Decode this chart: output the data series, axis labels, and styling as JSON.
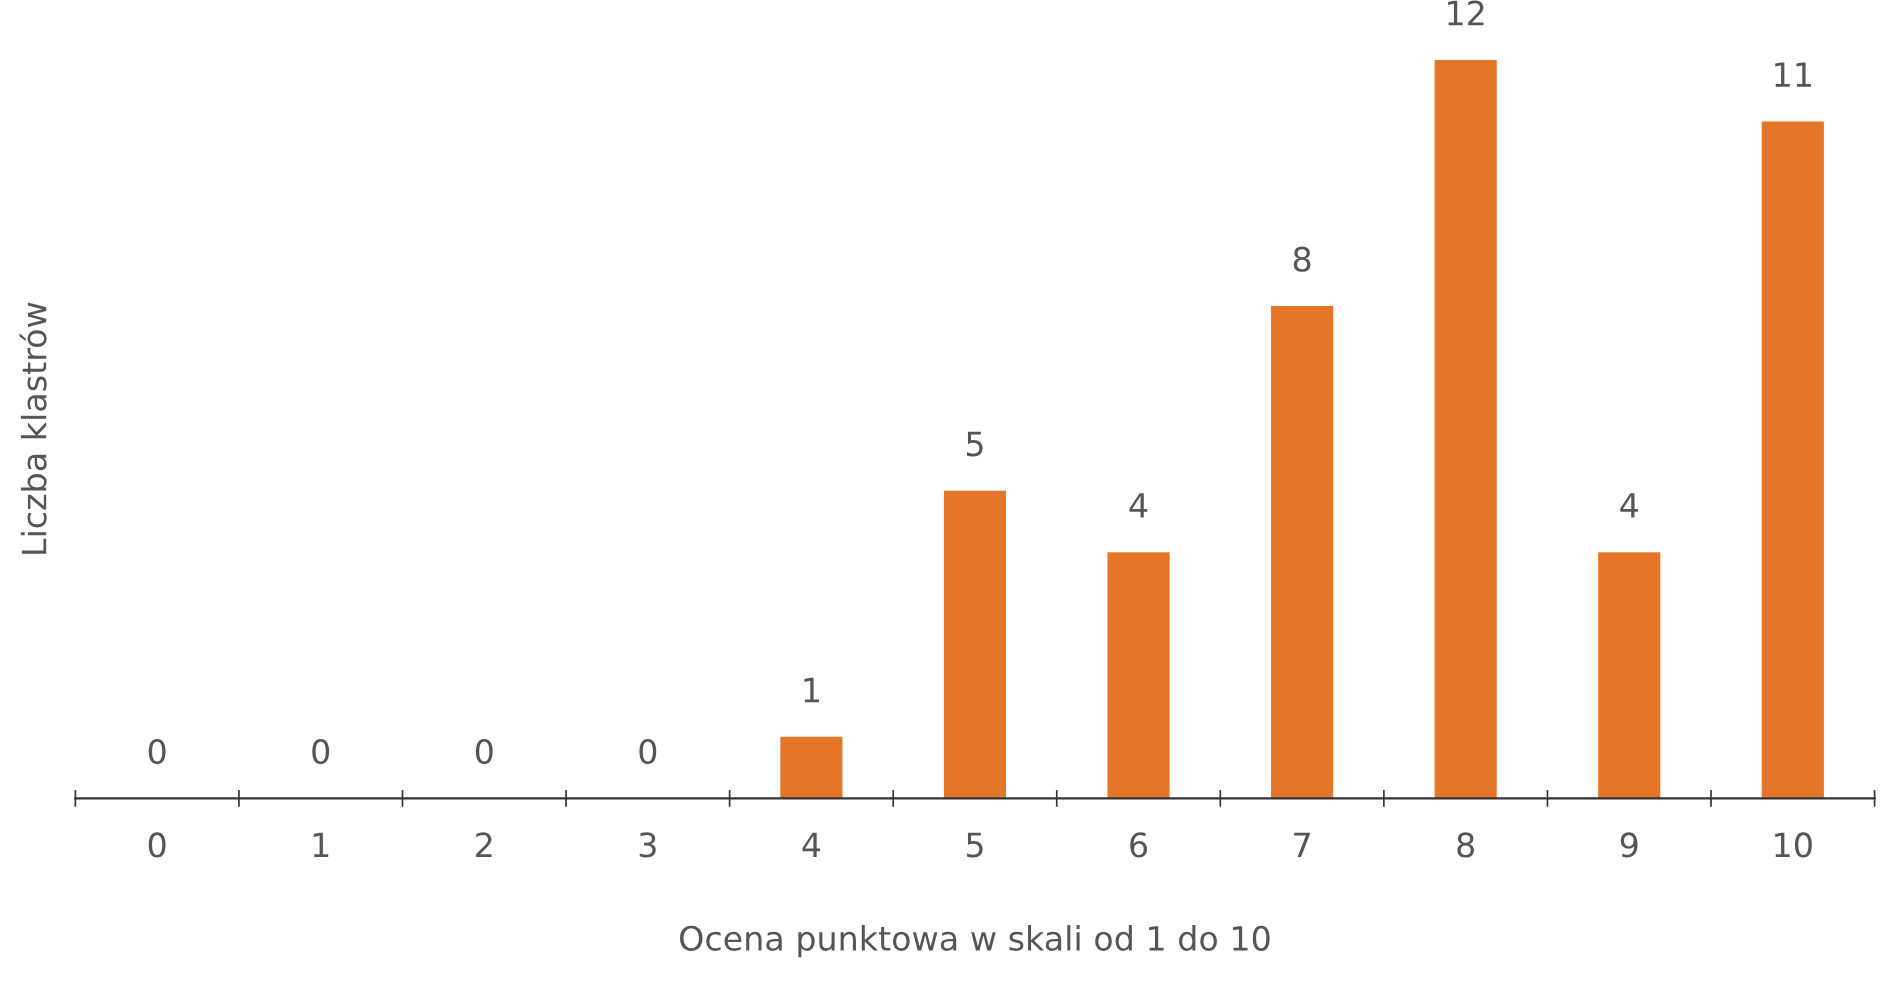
{
  "chart_data": {
    "type": "bar",
    "xlabel": "Ocena punktowa w skali od 1 do 10",
    "ylabel": "Liczba klastrów",
    "categories": [
      "0",
      "1",
      "2",
      "3",
      "4",
      "5",
      "6",
      "7",
      "8",
      "9",
      "10"
    ],
    "values": [
      0,
      0,
      0,
      0,
      1,
      5,
      4,
      8,
      12,
      4,
      11
    ],
    "color": "#e57627",
    "data_labels": true,
    "grid": false,
    "legend": false
  }
}
